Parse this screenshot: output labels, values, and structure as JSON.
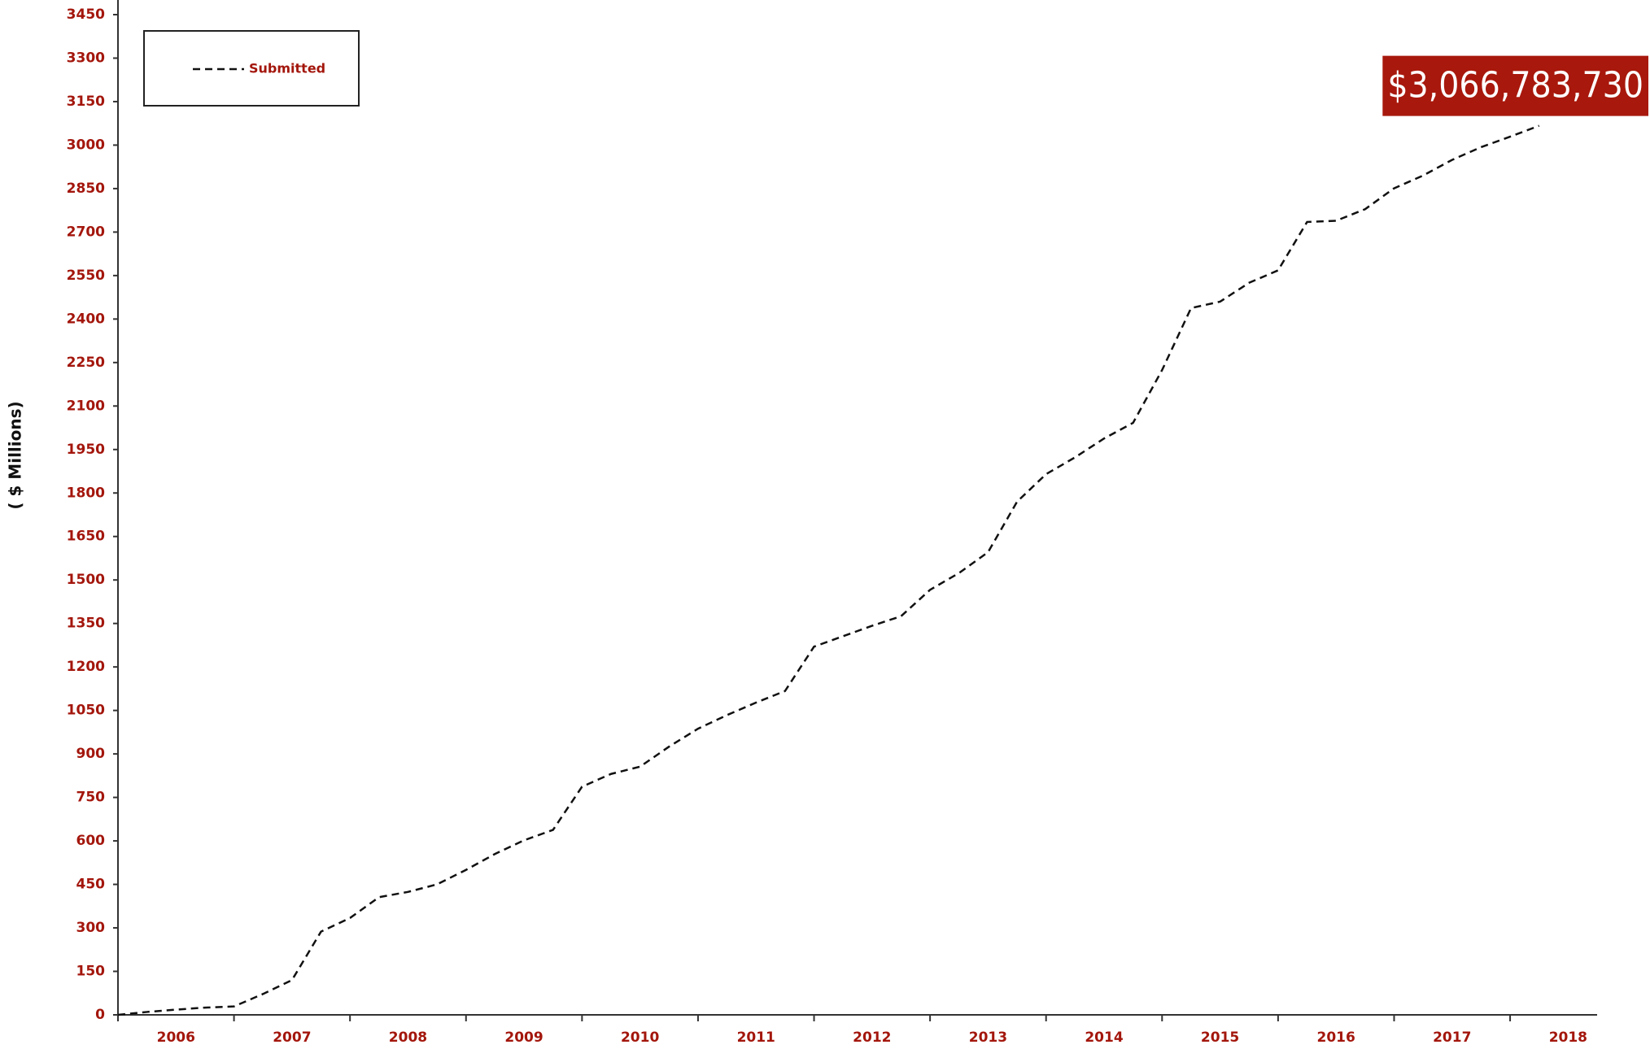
{
  "chart_data": {
    "type": "line",
    "y_label": "( $ Millions)",
    "annotation": "$3,066,783,730",
    "legend": "top-left",
    "x": [
      2006,
      2006.25,
      2006.5,
      2006.75,
      2007,
      2007.25,
      2007.5,
      2007.75,
      2008,
      2008.25,
      2008.5,
      2008.75,
      2009,
      2009.25,
      2009.5,
      2009.75,
      2010,
      2010.25,
      2010.5,
      2010.75,
      2011,
      2011.25,
      2011.5,
      2011.75,
      2012,
      2012.25,
      2012.5,
      2012.75,
      2013,
      2013.25,
      2013.5,
      2013.75,
      2014,
      2014.25,
      2014.5,
      2014.75,
      2015,
      2015.25,
      2015.5,
      2015.75,
      2016,
      2016.25,
      2016.5,
      2016.75,
      2017,
      2017.25,
      2017.5,
      2017.75,
      2018,
      2018.25
    ],
    "series": [
      {
        "name": "Submitted",
        "color": "#111111",
        "values": [
          0,
          10,
          18,
          25,
          29,
          72,
          120,
          287,
          334,
          406,
          424,
          450,
          500,
          555,
          602,
          638,
          787,
          831,
          856,
          925,
          987,
          1034,
          1077,
          1117,
          1270,
          1306,
          1342,
          1375,
          1466,
          1524,
          1596,
          1770,
          1865,
          1923,
          1988,
          2042,
          2224,
          2438,
          2460,
          2525,
          2568,
          2735,
          2739,
          2779,
          2851,
          2895,
          2949,
          2993,
          3029,
          3066.78373
        ]
      }
    ],
    "xlim": [
      2006,
      2018.75
    ],
    "xticks": [
      {
        "value": 2006.5,
        "label": "2006"
      },
      {
        "value": 2007.5,
        "label": "2007"
      },
      {
        "value": 2008.5,
        "label": "2008"
      },
      {
        "value": 2009.5,
        "label": "2009"
      },
      {
        "value": 2010.5,
        "label": "2010"
      },
      {
        "value": 2011.5,
        "label": "2011"
      },
      {
        "value": 2012.5,
        "label": "2012"
      },
      {
        "value": 2013.5,
        "label": "2013"
      },
      {
        "value": 2014.5,
        "label": "2014"
      },
      {
        "value": 2015.5,
        "label": "2015"
      },
      {
        "value": 2016.5,
        "label": "2016"
      },
      {
        "value": 2017.5,
        "label": "2017"
      },
      {
        "value": 2018.5,
        "label": "2018"
      }
    ],
    "x_minor_ticks": [
      2006,
      2007,
      2008,
      2009,
      2010,
      2011,
      2012,
      2013,
      2014,
      2015,
      2016,
      2017,
      2018
    ],
    "ylim": [
      0,
      3450
    ],
    "yticks": [
      0,
      150,
      300,
      450,
      600,
      750,
      900,
      1050,
      1200,
      1350,
      1500,
      1650,
      1800,
      1950,
      2100,
      2250,
      2400,
      2550,
      2700,
      2850,
      3000,
      3150,
      3300,
      3450
    ]
  }
}
